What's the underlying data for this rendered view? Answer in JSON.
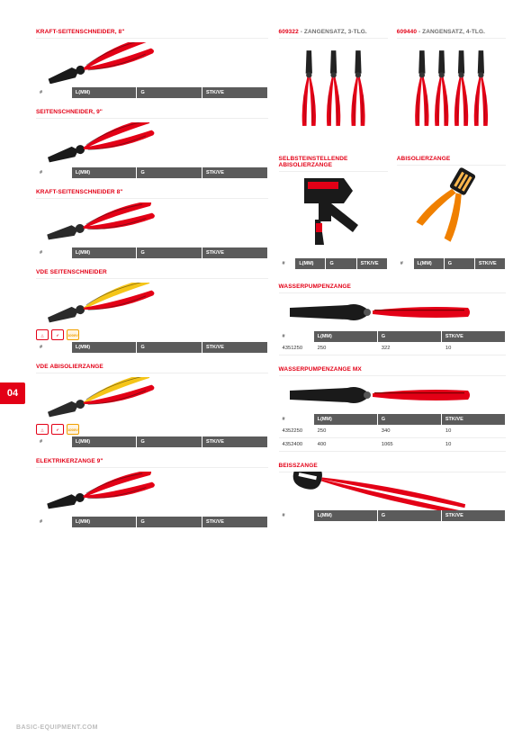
{
  "page": {
    "tab": "04",
    "footer": "BASIC-EQUIPMENT.COM"
  },
  "table_headers": {
    "num": "#",
    "l": "L(MM)",
    "g": "G",
    "stk": "STK/VE"
  },
  "left": [
    {
      "title": "KRAFT-SEITENSCHNEIDER, 8\"",
      "img": "cutter_black_red",
      "rows": 0,
      "badges": false
    },
    {
      "title": "SEITENSCHNEIDER, 9\"",
      "img": "cutter_black_red2",
      "rows": 0,
      "badges": false
    },
    {
      "title": "KRAFT-SEITENSCHNEIDER 8\"",
      "img": "cutter_red",
      "rows": 0,
      "badges": false
    },
    {
      "title": "VDE SEITENSCHNEIDER",
      "img": "cutter_vde",
      "rows": 0,
      "badges": true
    },
    {
      "title": "VDE ABISOLIERZANGE",
      "img": "strip_vde",
      "rows": 0,
      "badges": true
    },
    {
      "title": "ELEKTRIKERZANGE 9\"",
      "img": "elek_red",
      "rows": 0,
      "badges": false
    }
  ],
  "right_top": [
    {
      "code": "609322",
      "rest": " - ZANGENSATZ, 3-TLG.",
      "count": 3
    },
    {
      "code": "609440",
      "rest": " - ZANGENSATZ, 4-TLG.",
      "count": 4
    }
  ],
  "right_mid": [
    {
      "title": "SELBSTEINSTELLENDE ABISOLIERZANGE",
      "img": "auto_strip"
    },
    {
      "title": "ABISOLIERZANGE",
      "img": "wire_strip"
    }
  ],
  "right_bottom": [
    {
      "title": "WASSERPUMPENZANGE",
      "img": "waterpump",
      "rows": [
        {
          "num": "4351250",
          "l": "250",
          "g": "322",
          "stk": "10"
        }
      ]
    },
    {
      "title": "WASSERPUMPENZANGE MX",
      "img": "waterpump2",
      "rows": [
        {
          "num": "4352250",
          "l": "250",
          "g": "340",
          "stk": "10"
        },
        {
          "num": "4352400",
          "l": "400",
          "g": "1065",
          "stk": "10"
        }
      ]
    },
    {
      "title": "BEISSZANGE",
      "img": "pincer",
      "rows": []
    }
  ],
  "icons": {
    "cutter_black_red": {
      "handle": "#e30016",
      "head": "#1a1a1a",
      "rot": -20
    },
    "cutter_black_red2": {
      "handle": "#e30016",
      "head": "#1a1a1a",
      "rot": -18
    },
    "cutter_red": {
      "handle": "#e30016",
      "head": "#2a2a2a",
      "rot": -15
    },
    "cutter_vde": {
      "handle": "#f5c518",
      "handle2": "#e30016",
      "head": "#2a2a2a",
      "rot": -18
    },
    "strip_vde": {
      "handle": "#f5c518",
      "handle2": "#e30016",
      "head": "#2a2a2a",
      "rot": -18
    },
    "elek_red": {
      "handle": "#e30016",
      "head": "#1a1a1a",
      "rot": -15
    },
    "waterpump": {
      "handle": "#e30016",
      "head": "#1a1a1a",
      "rot": 0
    },
    "waterpump2": {
      "handle": "#e30016",
      "head": "#1a1a1a",
      "rot": 0
    },
    "pincer": {
      "handle": "#e30016",
      "head": "#1a1a1a",
      "rot": 12
    },
    "auto_strip": {
      "body": "#1a1a1a",
      "accent": "#e30016"
    },
    "wire_strip": {
      "handle": "#f08000",
      "head": "#1a1a1a"
    }
  }
}
